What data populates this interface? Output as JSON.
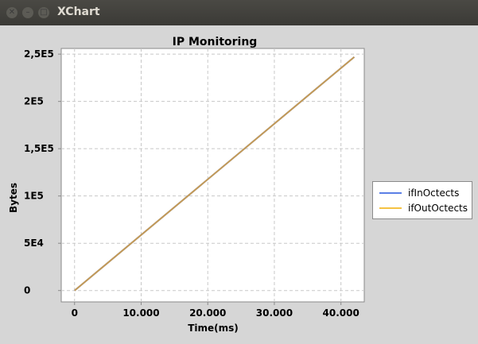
{
  "window": {
    "title": "XChart"
  },
  "chart_data": {
    "type": "line",
    "title": "IP Monitoring",
    "xlabel": "Time(ms)",
    "ylabel": "Bytes",
    "xlim": [
      -2000,
      43500
    ],
    "ylim": [
      -12000,
      256000
    ],
    "x_ticks": [
      0,
      10000,
      20000,
      30000,
      40000
    ],
    "x_tick_labels": [
      "0",
      "10.000",
      "20.000",
      "30.000",
      "40.000"
    ],
    "y_ticks": [
      0,
      50000,
      100000,
      150000,
      200000,
      250000
    ],
    "y_tick_labels": [
      "0",
      "5E4",
      "1E5",
      "1,5E5",
      "2E5",
      "2,5E5"
    ],
    "grid": true,
    "legend_position": "outside-right",
    "series": [
      {
        "name": "ifInOctects",
        "color": "#5b7fe6",
        "x": [
          0,
          42000
        ],
        "y": [
          0,
          247000
        ]
      },
      {
        "name": "ifOutOctects",
        "color": "#f5c242",
        "x": [
          0,
          42000
        ],
        "y": [
          0,
          247000
        ]
      }
    ]
  }
}
